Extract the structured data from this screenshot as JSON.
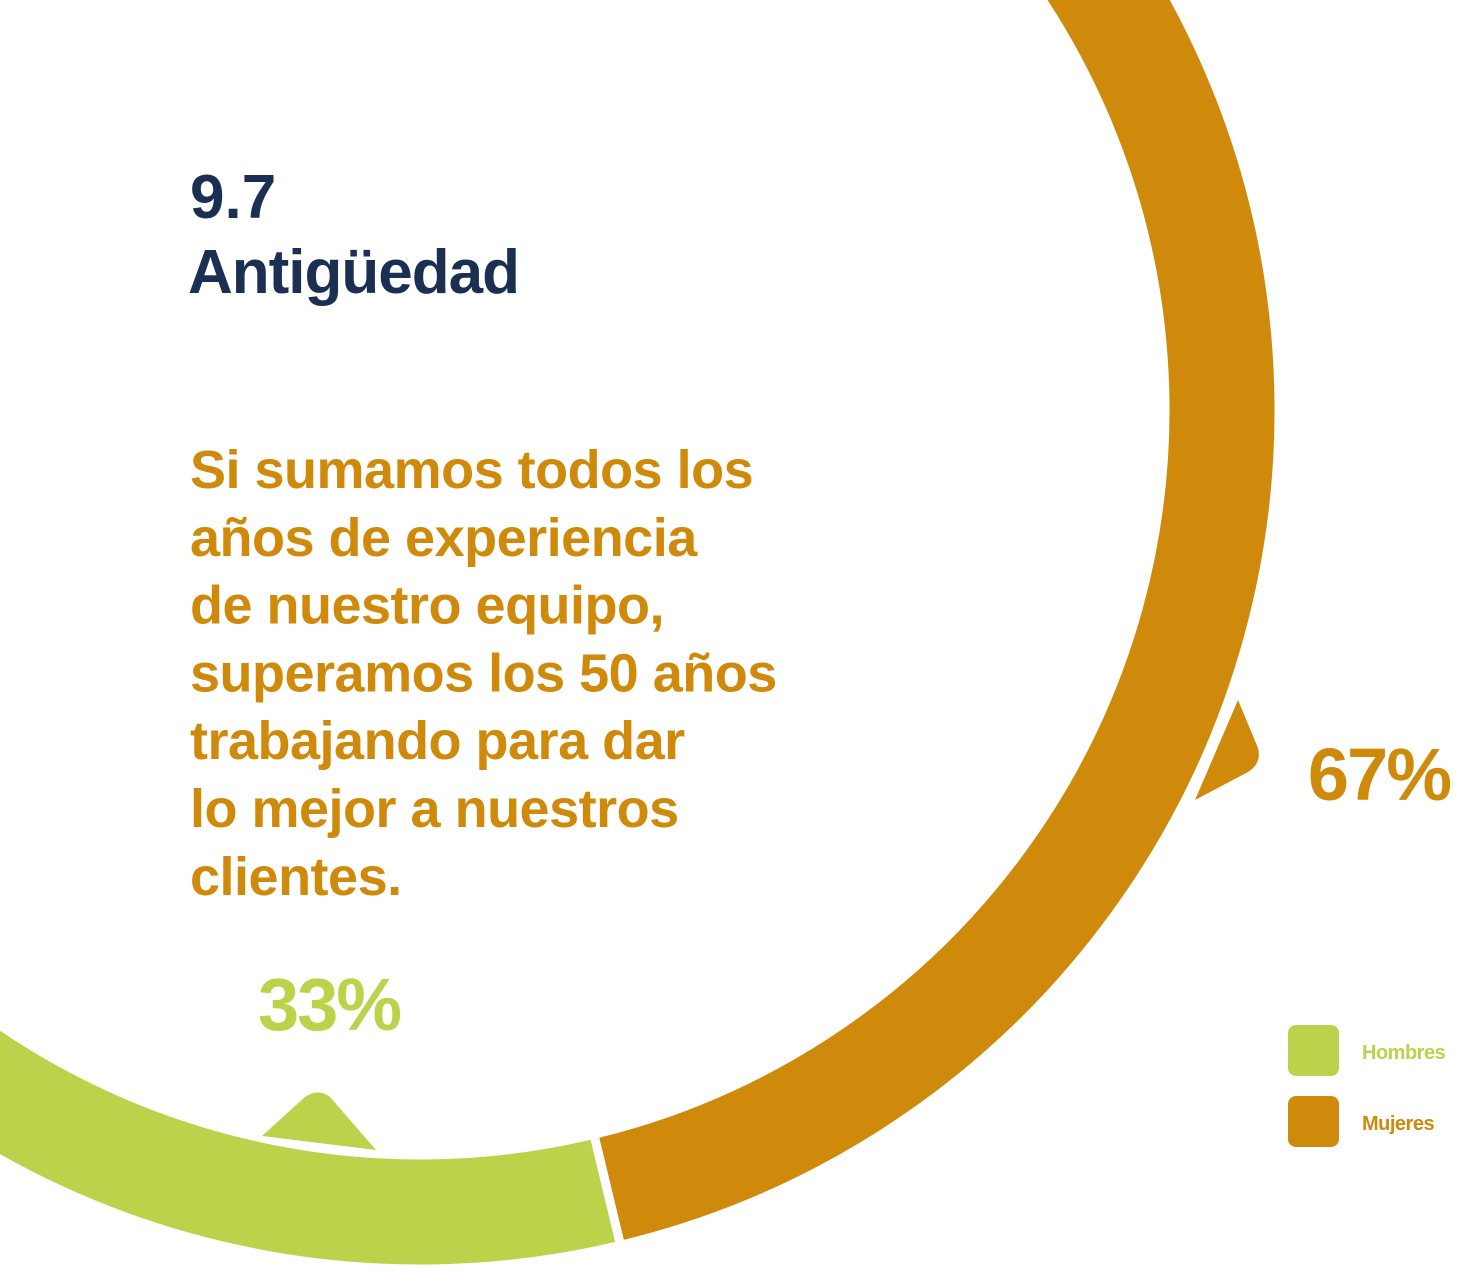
{
  "chart_data": {
    "type": "donut",
    "section": "9.7",
    "title": "Antigüedad",
    "text": [
      "Si sumamos todos los",
      "años de experiencia",
      "de nuestro equipo,",
      "superamos los 50 años",
      "trabajando para dar",
      "lo mejor a nuestros",
      "clientes."
    ],
    "categories": [
      "Hombres",
      "Mujeres"
    ],
    "values": [
      33,
      67
    ],
    "value_labels": [
      "33%",
      "67%"
    ],
    "colors": [
      "#bcd24a",
      "#cf8a0c"
    ],
    "legend": "bottom-right"
  }
}
